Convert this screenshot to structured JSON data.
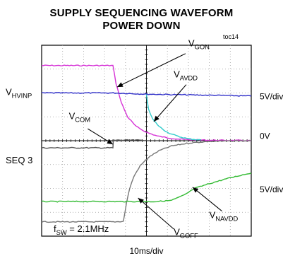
{
  "chart_data": {
    "type": "line",
    "title": "SUPPLY SEQUENCING WAVEFORM",
    "subtitle": "POWER DOWN",
    "figure_tag": "toc14",
    "xlabel": "10ms/div",
    "grid": true,
    "x_divisions": 10,
    "y_divisions": 8,
    "x_unit": "div",
    "y_unit": "div",
    "xlim": [
      0,
      10
    ],
    "ylim": [
      0,
      8
    ],
    "right_scale_labels": [
      "5V/div",
      "0V",
      "5V/div"
    ],
    "left_channel_labels": [
      {
        "main": "V",
        "sub": "HVINP"
      },
      {
        "main": "SEQ 3",
        "sub": ""
      }
    ],
    "annotation": {
      "main": "f",
      "sub": "SW",
      "rest": " = 2.1MHz"
    },
    "series": [
      {
        "name": "VGON",
        "label_main": "V",
        "label_sub": "GON",
        "color": "#d633d6",
        "x": [
          0,
          3.4,
          3.55,
          3.8,
          4.1,
          4.5,
          5.0,
          5.5,
          6.0,
          6.5,
          7.0,
          8.0,
          10.0
        ],
        "y": [
          7.15,
          7.15,
          6.4,
          5.6,
          5.0,
          4.6,
          4.35,
          4.2,
          4.12,
          4.07,
          4.04,
          4.02,
          4.0
        ]
      },
      {
        "name": "VHVINP",
        "color": "#2f2fc8",
        "x": [
          0,
          3.5,
          5.0,
          7.0,
          8.5,
          10.0
        ],
        "y": [
          6.0,
          6.0,
          5.95,
          5.92,
          5.9,
          5.87
        ]
      },
      {
        "name": "VAVDD",
        "label_main": "V",
        "label_sub": "AVDD",
        "color": "#33cccc",
        "x": [
          5.0,
          5.1,
          5.3,
          5.6,
          6.0,
          6.5,
          7.0,
          7.6
        ],
        "y": [
          5.95,
          5.3,
          4.9,
          4.6,
          4.35,
          4.18,
          4.08,
          4.03
        ]
      },
      {
        "name": "VCOM",
        "label_main": "V",
        "label_sub": "COM",
        "color": "#555555",
        "x": [
          0,
          3.4,
          3.42,
          5.0
        ],
        "y": [
          3.7,
          3.7,
          4.02,
          4.02
        ]
      },
      {
        "name": "VGOFF",
        "label_main": "V",
        "label_sub": "GOFF",
        "color": "#777777",
        "x": [
          0,
          3.5,
          3.9,
          4.05,
          4.2,
          4.4,
          4.7,
          5.1,
          5.6,
          6.2,
          7.0,
          8.0,
          10.0
        ],
        "y": [
          0.6,
          0.6,
          0.62,
          1.4,
          2.0,
          2.5,
          2.95,
          3.3,
          3.58,
          3.78,
          3.9,
          3.97,
          4.0
        ]
      },
      {
        "name": "VNAVDD",
        "label_main": "V",
        "label_sub": "NAVDD",
        "color": "#33bb33",
        "x": [
          0,
          5.5,
          6.2,
          6.8,
          7.3,
          8.0,
          8.8,
          9.5,
          10.0
        ],
        "y": [
          1.45,
          1.45,
          1.5,
          1.72,
          2.0,
          2.2,
          2.4,
          2.55,
          2.65
        ]
      }
    ]
  }
}
